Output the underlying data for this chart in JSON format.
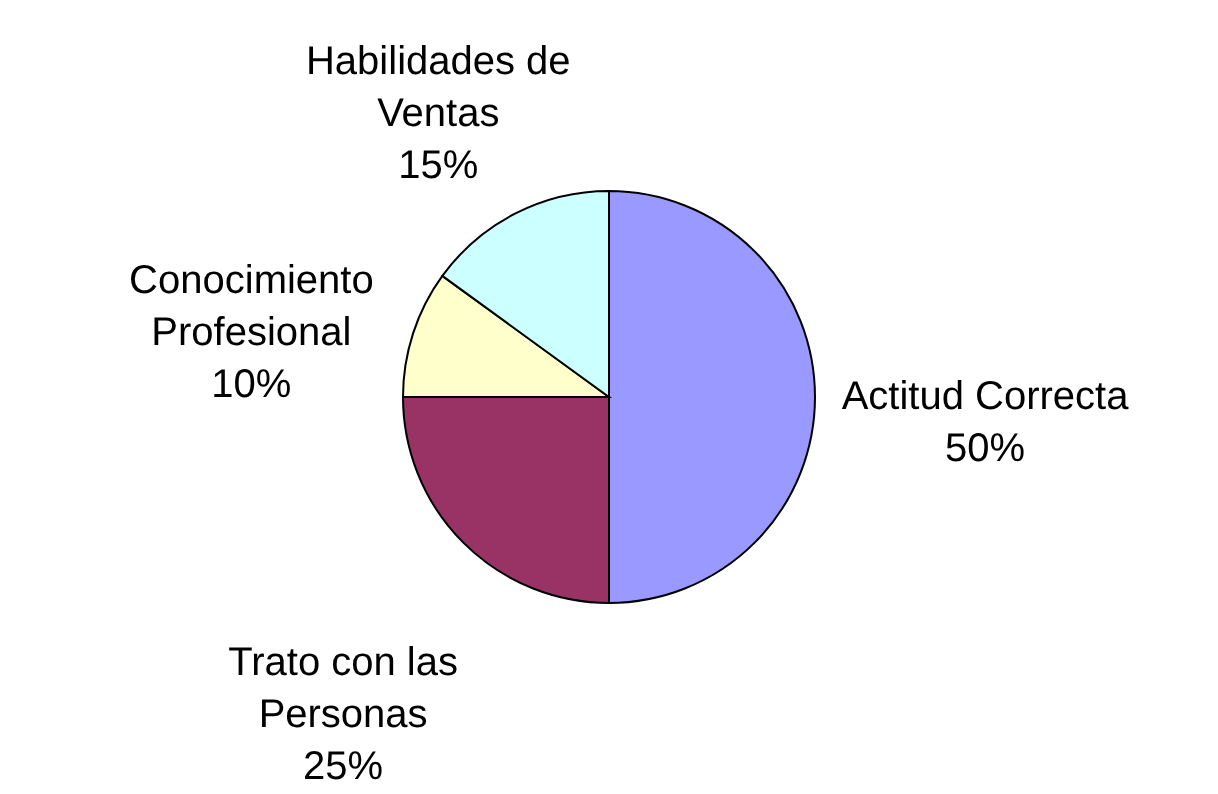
{
  "chart_data": {
    "type": "pie",
    "categories": [
      "Actitud Correcta",
      "Trato con las Personas",
      "Conocimiento Profesional",
      "Habilidades de Ventas"
    ],
    "values": [
      50,
      25,
      10,
      15
    ],
    "colors": [
      "#9999ff",
      "#993366",
      "#ffffcc",
      "#ccffff"
    ],
    "value_labels": [
      "50%",
      "25%",
      "10%",
      "15%"
    ]
  }
}
